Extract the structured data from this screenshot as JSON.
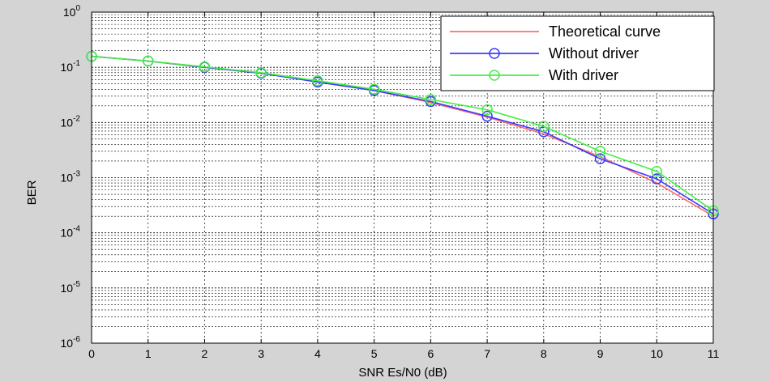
{
  "chart_data": {
    "type": "line",
    "xlabel": "SNR Es/N0 (dB)",
    "ylabel": "BER",
    "x": [
      0,
      1,
      2,
      3,
      4,
      5,
      6,
      7,
      8,
      9,
      10,
      11
    ],
    "xlim": [
      0,
      11
    ],
    "ylim": [
      1e-06,
      1
    ],
    "yscale": "log",
    "grid": true,
    "legend_position": "top-right",
    "x_ticks": [
      "0",
      "1",
      "2",
      "3",
      "4",
      "5",
      "6",
      "7",
      "8",
      "9",
      "10",
      "11"
    ],
    "y_ticks": [
      {
        "base": "10",
        "exp": "0"
      },
      {
        "base": "10",
        "exp": "-1"
      },
      {
        "base": "10",
        "exp": "-2"
      },
      {
        "base": "10",
        "exp": "-3"
      },
      {
        "base": "10",
        "exp": "-4"
      },
      {
        "base": "10",
        "exp": "-5"
      },
      {
        "base": "10",
        "exp": "-6"
      }
    ],
    "series": [
      {
        "name": "Theoretical curve",
        "color": "#ff6b6b",
        "marker": "none",
        "values": [
          0.158,
          0.13,
          0.1,
          0.078,
          0.056,
          0.038,
          0.023,
          0.0125,
          0.0062,
          0.0024,
          0.0008,
          0.0002
        ]
      },
      {
        "name": "Without driver",
        "color": "#3b3bff",
        "marker": "circle",
        "values": [
          0.158,
          0.13,
          0.1,
          0.078,
          0.054,
          0.038,
          0.024,
          0.013,
          0.0068,
          0.0022,
          0.00095,
          0.00022
        ]
      },
      {
        "name": "With driver",
        "color": "#44ee44",
        "marker": "circle",
        "values": [
          0.158,
          0.13,
          0.102,
          0.08,
          0.057,
          0.04,
          0.026,
          0.017,
          0.0085,
          0.003,
          0.0013,
          0.00025
        ]
      }
    ]
  }
}
